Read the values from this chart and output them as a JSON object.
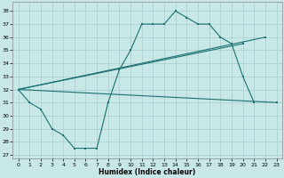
{
  "xlabel": "Humidex (Indice chaleur)",
  "bg_color": "#c8e8e8",
  "grid_color": "#a8cccc",
  "line_color": "#1a7070",
  "xlim": [
    -0.5,
    23.5
  ],
  "ylim": [
    26.7,
    38.7
  ],
  "yticks": [
    27,
    28,
    29,
    30,
    31,
    32,
    33,
    34,
    35,
    36,
    37,
    38
  ],
  "xticks": [
    0,
    1,
    2,
    3,
    4,
    5,
    6,
    7,
    8,
    9,
    10,
    11,
    12,
    13,
    14,
    15,
    16,
    17,
    18,
    19,
    20,
    21,
    22,
    23
  ],
  "segments": [
    {
      "x": [
        0,
        1,
        2,
        3,
        4,
        5,
        6,
        7,
        8,
        9,
        10,
        11,
        12,
        13,
        14,
        15,
        16,
        17,
        18,
        19,
        20,
        21
      ],
      "y": [
        32,
        31,
        30.5,
        29,
        28.5,
        27.5,
        27.5,
        27.5,
        31,
        33.5,
        35,
        37,
        37,
        37,
        38,
        37.5,
        37,
        37,
        36,
        35.5,
        33,
        31
      ]
    },
    {
      "x": [
        0,
        22
      ],
      "y": [
        32,
        36
      ]
    },
    {
      "x": [
        0,
        20
      ],
      "y": [
        32,
        35.5
      ]
    },
    {
      "x": [
        0,
        23
      ],
      "y": [
        32,
        31
      ]
    }
  ],
  "marker_segments": [
    {
      "x": [
        0,
        1,
        2,
        3,
        4,
        5,
        6,
        7,
        8,
        9,
        10,
        11,
        12,
        13,
        14,
        15,
        16,
        17,
        18,
        19,
        20,
        21
      ],
      "y": [
        32,
        31,
        30.5,
        29,
        28.5,
        27.5,
        27.5,
        27.5,
        31,
        33.5,
        35,
        37,
        37,
        37,
        38,
        37.5,
        37,
        37,
        36,
        35.5,
        33,
        31
      ]
    },
    {
      "x": [
        0,
        22
      ],
      "y": [
        32,
        36
      ]
    },
    {
      "x": [
        0,
        20
      ],
      "y": [
        32,
        35.5
      ]
    },
    {
      "x": [
        0,
        23
      ],
      "y": [
        32,
        31
      ]
    }
  ]
}
